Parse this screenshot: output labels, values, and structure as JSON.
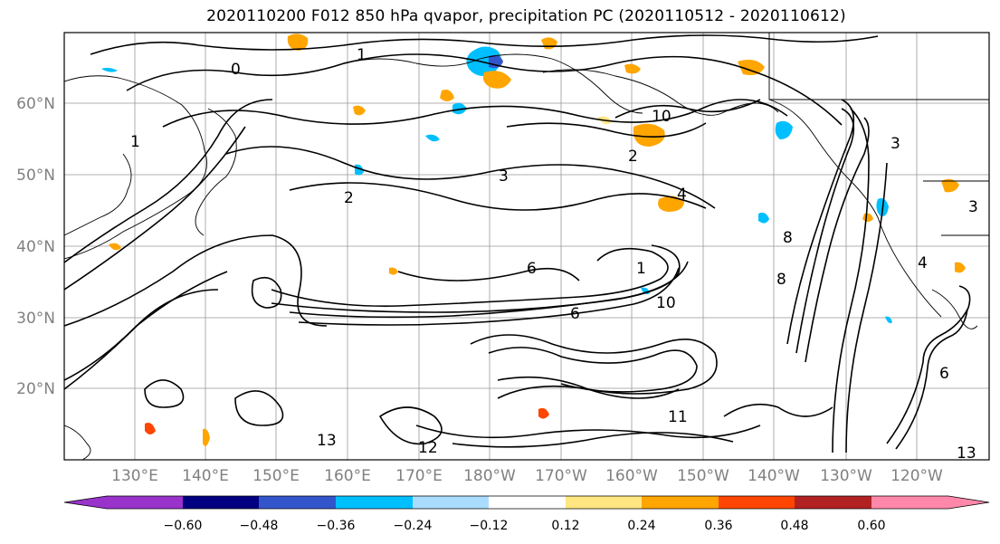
{
  "title": "2020110200 F012 850 hPa qvapor, precipitation PC (2020110512 - 2020110612)",
  "lat_labels": [
    "60°N",
    "50°N",
    "40°N",
    "30°N",
    "20°N"
  ],
  "lon_labels": [
    "130°E",
    "140°E",
    "150°E",
    "160°E",
    "170°E",
    "180°W",
    "170°W",
    "160°W",
    "150°W",
    "140°W",
    "130°W",
    "120°W"
  ],
  "contour_labels": [
    "1",
    "0",
    "10",
    "2",
    "3",
    "4",
    "2",
    "3",
    "6",
    "1",
    "10",
    "6",
    "8",
    "8",
    "4",
    "13",
    "12",
    "11",
    "13",
    "6",
    "1",
    "3"
  ],
  "colorbar": {
    "colors": [
      "#9933cc",
      "#000080",
      "#3355cc",
      "#00bfff",
      "#aadcff",
      "#ffffff",
      "#ffe680",
      "#ffa500",
      "#ff4500",
      "#b22222",
      "#ff88aa"
    ],
    "ticks": [
      "−0.60",
      "−0.48",
      "−0.36",
      "−0.24",
      "−0.12",
      "0.12",
      "0.24",
      "0.36",
      "0.48",
      "0.60"
    ]
  },
  "colors": {
    "contour": "#000000",
    "coastline": "#000000",
    "grid": "#999999",
    "positive_pc": "#ffa500",
    "negative_pc": "#00bfff"
  }
}
